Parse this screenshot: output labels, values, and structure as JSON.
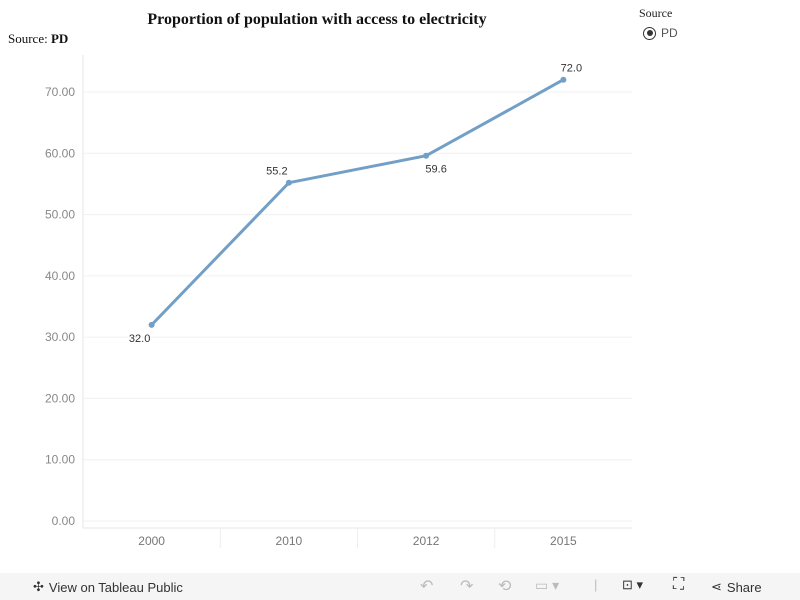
{
  "chart_data": {
    "type": "line",
    "title": "Proportion of population with access to electricity",
    "subtitle_label": "Source:",
    "subtitle_value": "PD",
    "categories": [
      "2000",
      "2010",
      "2012",
      "2015"
    ],
    "series": [
      {
        "name": "PD",
        "values": [
          32.0,
          55.2,
          59.6,
          72.0
        ],
        "labels": [
          "32.0",
          "55.2",
          "59.6",
          "72.0"
        ],
        "color": "#729fc7"
      }
    ],
    "yticks": [
      "0.00",
      "10.00",
      "20.00",
      "30.00",
      "40.00",
      "50.00",
      "60.00",
      "70.00"
    ],
    "ylim": [
      0,
      74.5
    ],
    "grid": true,
    "legend": {
      "title": "Source",
      "items": [
        "PD"
      ],
      "placement": "top-right"
    }
  },
  "toolbar": {
    "view_label": "View on Tableau Public",
    "share_label": "Share"
  }
}
